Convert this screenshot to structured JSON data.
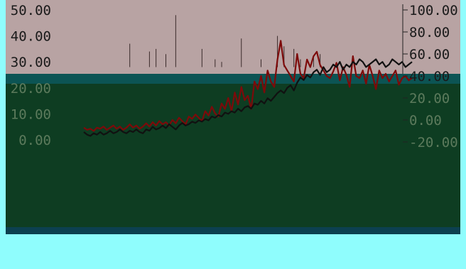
{
  "chart_data": {
    "type": "line",
    "title": "",
    "xlabel": "",
    "ylabel": "",
    "y_left": {
      "ticks": [
        "50.00",
        "40.00",
        "30.00",
        "20.00",
        "10.00",
        "0.00"
      ],
      "tick_values": [
        50,
        40,
        30,
        20,
        10,
        0
      ],
      "range": [
        0,
        50
      ]
    },
    "y_right": {
      "ticks": [
        "100.00",
        "80.00",
        "60.00",
        "40.00",
        "20.00",
        "0.00",
        "-20.00"
      ],
      "tick_values": [
        100,
        80,
        60,
        40,
        20,
        0,
        -20
      ],
      "range": [
        -20,
        100
      ]
    },
    "x_range": [
      0,
      100
    ],
    "series": [
      {
        "color": "#7d0a0a",
        "axis": "right",
        "x": [
          0,
          1,
          2,
          3,
          4,
          5,
          6,
          7,
          8,
          9,
          10,
          11,
          12,
          13,
          14,
          15,
          16,
          17,
          18,
          19,
          20,
          21,
          22,
          23,
          24,
          25,
          26,
          27,
          28,
          29,
          30,
          31,
          32,
          33,
          34,
          35,
          36,
          37,
          38,
          39,
          40,
          41,
          42,
          43,
          44,
          45,
          46,
          47,
          48,
          49,
          50,
          51,
          52,
          53,
          54,
          55,
          56,
          57,
          58,
          59,
          60,
          61,
          62,
          63,
          64,
          65,
          66,
          67,
          68,
          69,
          70,
          71,
          72,
          73,
          74,
          75,
          76,
          77,
          78,
          79,
          80,
          81,
          82,
          83,
          84,
          85,
          86,
          87,
          88,
          89,
          90,
          91,
          92,
          93,
          94,
          95,
          96,
          97,
          98,
          99,
          100
        ],
        "values": [
          -7,
          -9,
          -8,
          -10,
          -7,
          -8,
          -6,
          -9,
          -7,
          -5,
          -8,
          -6,
          -9,
          -7,
          -4,
          -7,
          -5,
          -8,
          -6,
          -3,
          -6,
          -2,
          -5,
          -1,
          -4,
          -2,
          -5,
          0,
          -3,
          2,
          -1,
          -4,
          3,
          1,
          5,
          2,
          -1,
          8,
          4,
          12,
          6,
          3,
          15,
          10,
          20,
          8,
          25,
          14,
          30,
          18,
          22,
          10,
          35,
          28,
          40,
          25,
          45,
          35,
          30,
          55,
          72,
          50,
          45,
          40,
          35,
          60,
          42,
          38,
          55,
          48,
          58,
          62,
          50,
          45,
          40,
          38,
          44,
          52,
          36,
          48,
          41,
          30,
          58,
          40,
          38,
          45,
          33,
          50,
          40,
          28,
          45,
          38,
          42,
          35,
          40,
          45,
          32,
          38,
          40,
          36,
          38
        ]
      },
      {
        "color": "#111111",
        "axis": "left",
        "x": [
          0,
          1,
          2,
          3,
          4,
          5,
          6,
          7,
          8,
          9,
          10,
          11,
          12,
          13,
          14,
          15,
          16,
          17,
          18,
          19,
          20,
          21,
          22,
          23,
          24,
          25,
          26,
          27,
          28,
          29,
          30,
          31,
          32,
          33,
          34,
          35,
          36,
          37,
          38,
          39,
          40,
          41,
          42,
          43,
          44,
          45,
          46,
          47,
          48,
          49,
          50,
          51,
          52,
          53,
          54,
          55,
          56,
          57,
          58,
          59,
          60,
          61,
          62,
          63,
          64,
          65,
          66,
          67,
          68,
          69,
          70,
          71,
          72,
          73,
          74,
          75,
          76,
          77,
          78,
          79,
          80,
          81,
          82,
          83,
          84,
          85,
          86,
          87,
          88,
          89,
          90,
          91,
          92,
          93,
          94,
          95,
          96,
          97,
          98,
          99,
          100
        ],
        "values": [
          3,
          2,
          1.5,
          2.5,
          2,
          3,
          2,
          2.5,
          3.5,
          2.5,
          3,
          4,
          3,
          2.5,
          3.5,
          3,
          4,
          3,
          2.5,
          4,
          3.5,
          5,
          4,
          4.5,
          5.5,
          4.5,
          6,
          5,
          4,
          5.5,
          6.5,
          5.5,
          6,
          7,
          6.5,
          7.5,
          7,
          8,
          7.5,
          9,
          8.5,
          9.5,
          9,
          10.5,
          10,
          11,
          10.5,
          12,
          11,
          12.5,
          13,
          12,
          14,
          13.5,
          15,
          14,
          16,
          15,
          16.5,
          18,
          19,
          18,
          20,
          21,
          19,
          22,
          24,
          23,
          25,
          24,
          26,
          27,
          25,
          28,
          26,
          27,
          29,
          28,
          30,
          27,
          29,
          28,
          30,
          29,
          31,
          30,
          28,
          29,
          30,
          31,
          29,
          30,
          28,
          29,
          31,
          30,
          29,
          30,
          28,
          29,
          30
        ]
      }
    ],
    "spikes": [
      {
        "x": 14,
        "value": 37
      },
      {
        "x": 20,
        "value": 34
      },
      {
        "x": 22,
        "value": 35
      },
      {
        "x": 25,
        "value": 33
      },
      {
        "x": 28,
        "value": 48
      },
      {
        "x": 36,
        "value": 35
      },
      {
        "x": 40,
        "value": 31
      },
      {
        "x": 42,
        "value": 30
      },
      {
        "x": 48,
        "value": 39
      },
      {
        "x": 54,
        "value": 31
      },
      {
        "x": 59,
        "value": 40
      },
      {
        "x": 61,
        "value": 36
      },
      {
        "x": 64,
        "value": 35
      },
      {
        "x": 66,
        "value": 31
      },
      {
        "x": 70,
        "value": 32
      },
      {
        "x": 72,
        "value": 33
      }
    ],
    "grid": false,
    "legend": "none"
  }
}
